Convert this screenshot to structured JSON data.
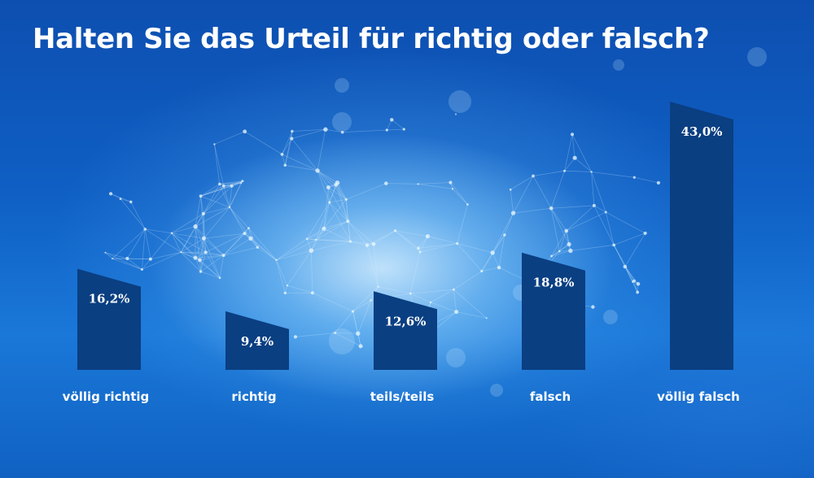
{
  "chart_data": {
    "type": "bar",
    "title": "Halten Sie das Urteil für richtig oder falsch?",
    "categories": [
      "völlig richtig",
      "richtig",
      "teils/teils",
      "falsch",
      "völlig falsch"
    ],
    "values": [
      16.2,
      9.4,
      12.6,
      18.8,
      43.0
    ],
    "value_labels": [
      "16,2%",
      "9,4%",
      "12,6%",
      "18,8%",
      "43,0%"
    ],
    "unit": "%",
    "ylim": [
      0,
      43.0
    ],
    "grid": false,
    "legend": "none",
    "bar_color": "#0a3f82",
    "text_color": "#ffffff"
  }
}
